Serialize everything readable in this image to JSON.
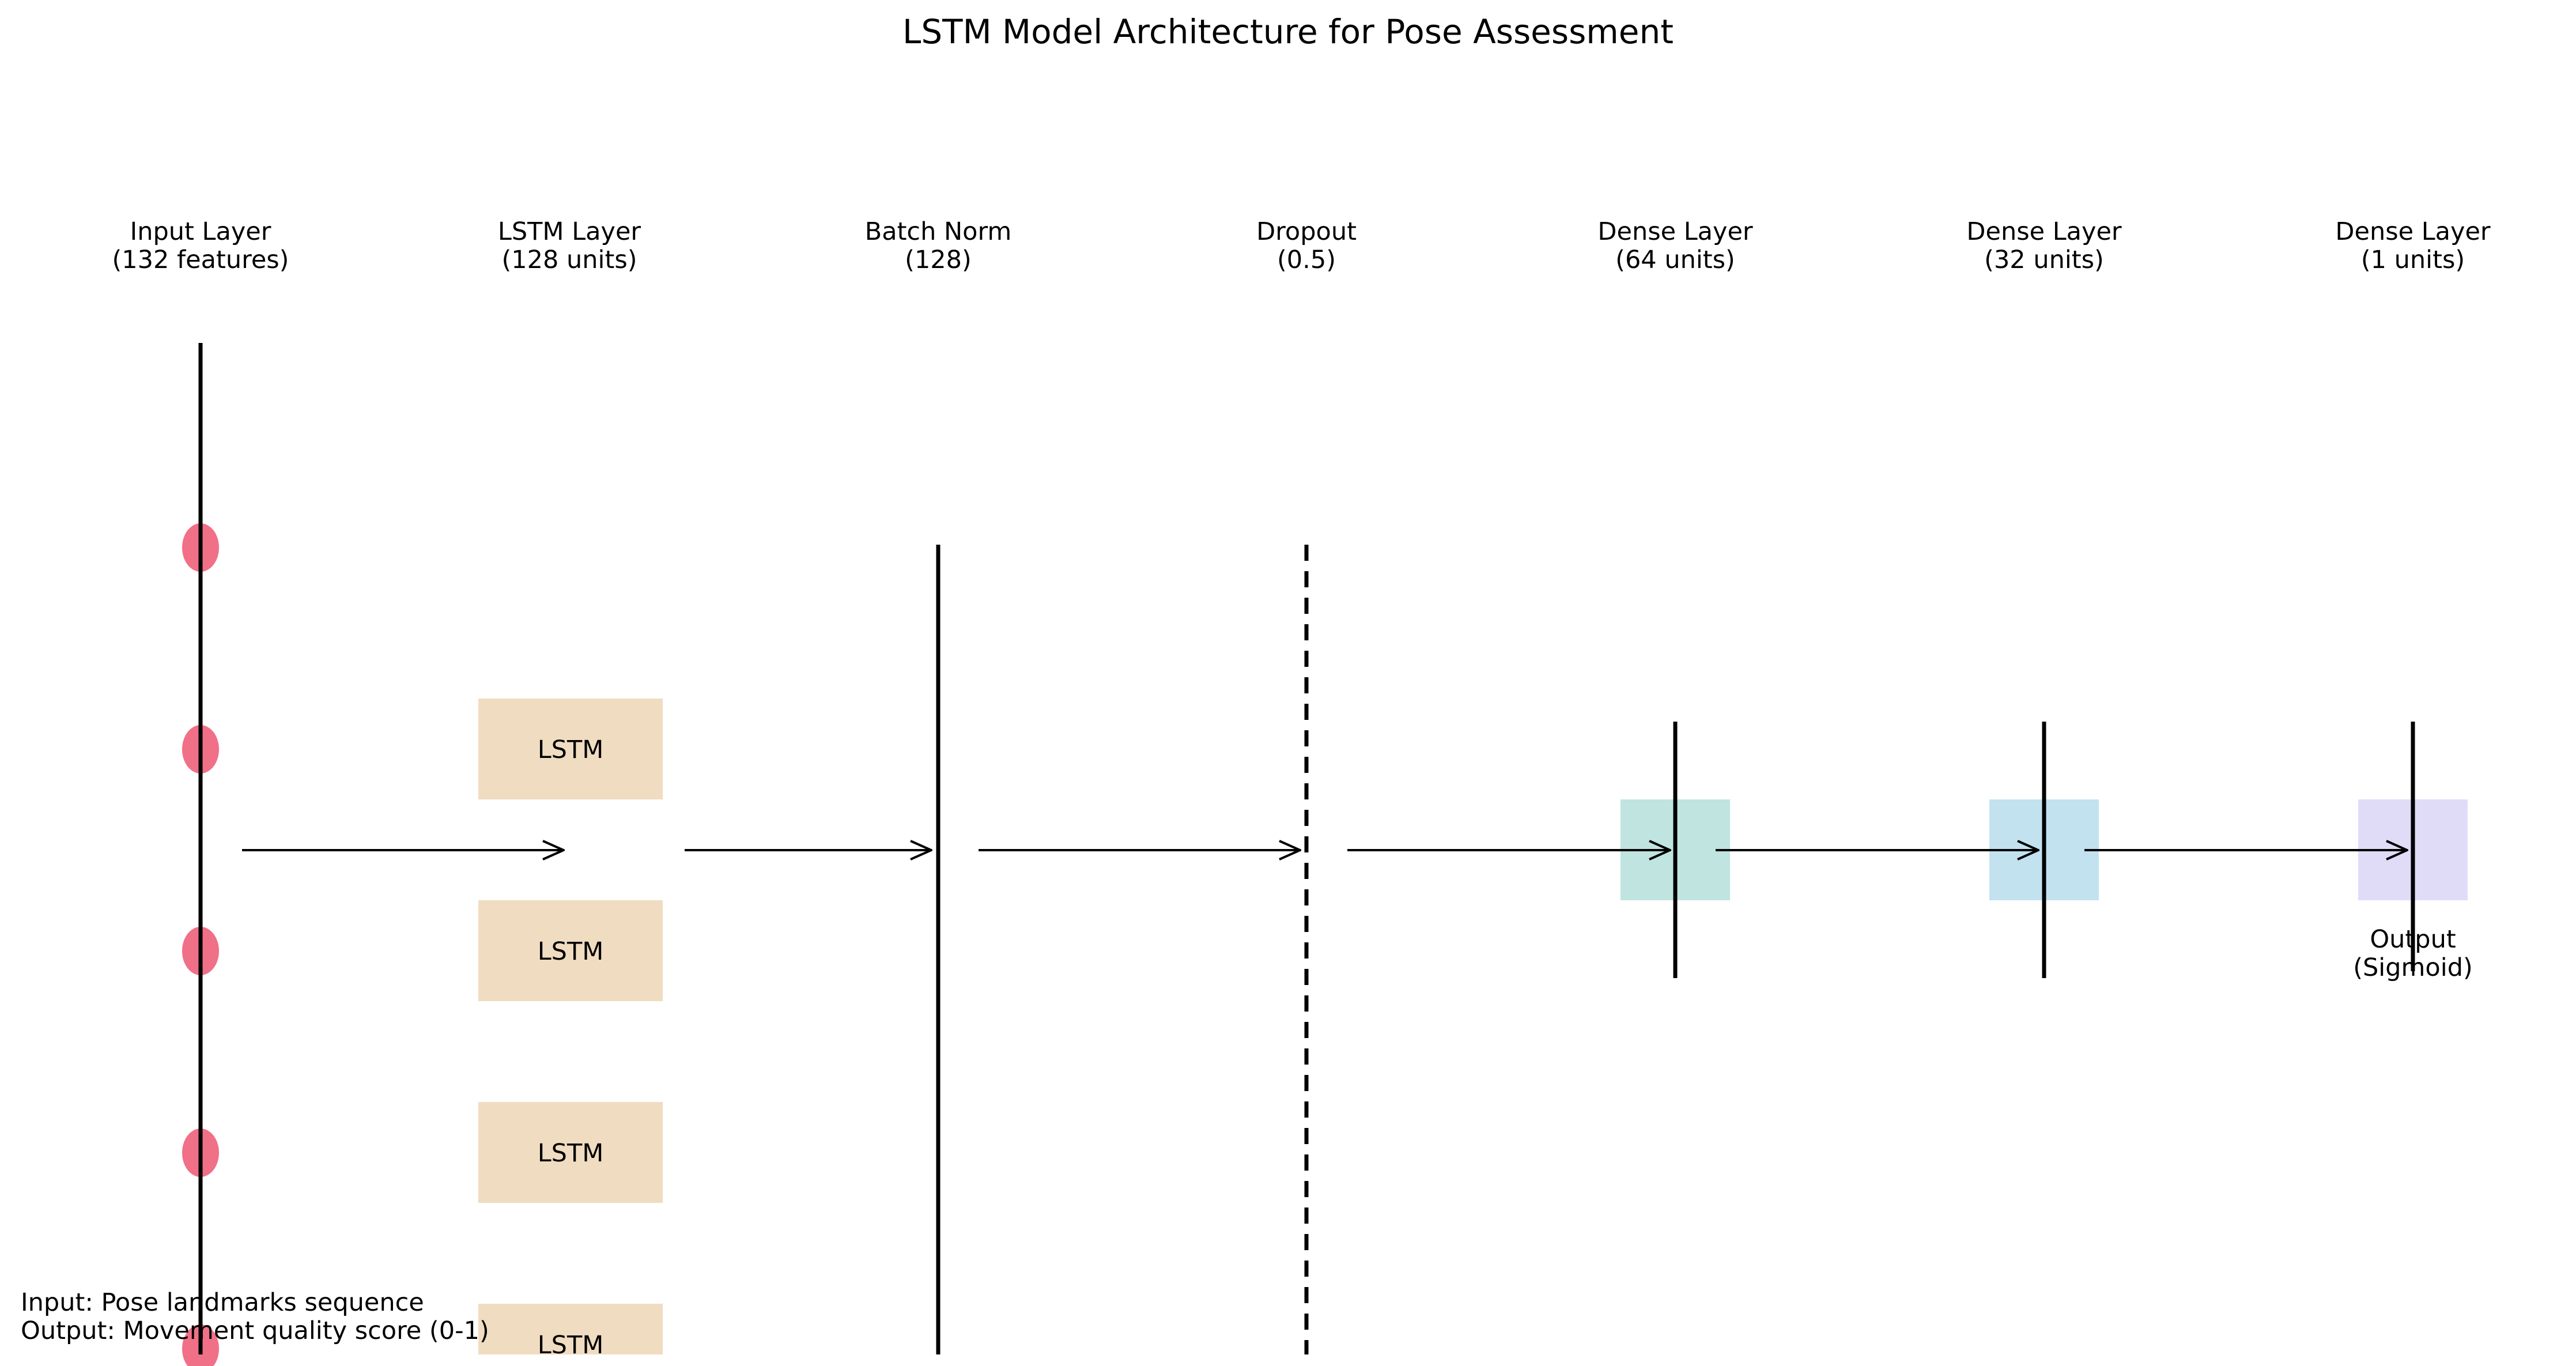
{
  "title": "LSTM Model Architecture for Pose Assessment",
  "layers": [
    {
      "name": "Input Layer",
      "detail": "(132 features)"
    },
    {
      "name": "LSTM Layer",
      "detail": "(128 units)"
    },
    {
      "name": "Batch Norm",
      "detail": "(128)"
    },
    {
      "name": "Dropout",
      "detail": "(0.5)"
    },
    {
      "name": "Dense Layer",
      "detail": "(64 units)"
    },
    {
      "name": "Dense Layer",
      "detail": "(32 units)"
    },
    {
      "name": "Dense Layer",
      "detail": "(1 units)"
    }
  ],
  "lstm_cell_label": "LSTM",
  "output_note": {
    "line1": "Output",
    "line2": "(Sigmoid)"
  },
  "footnote": {
    "line1": "Input: Pose landmarks sequence",
    "line2": "Output: Movement quality score (0-1)"
  },
  "colors": {
    "input_node": "#f07088",
    "lstm_box": "#f0dcc0",
    "dense_64": "#c0e4e0",
    "dense_32": "#c2e2f0",
    "dense_1": "#e0dcf8",
    "line": "#000000"
  }
}
